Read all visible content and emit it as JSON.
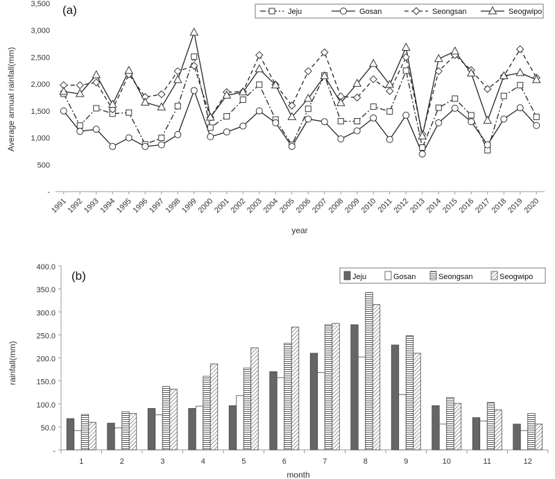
{
  "chart_data": [
    {
      "type": "line",
      "panel_label": "(a)",
      "xlabel": "year",
      "ylabel": "Average annual rainfall(mm)",
      "ylim": [
        0,
        3500
      ],
      "yticks": [
        "-",
        "500",
        "1,000",
        "1,500",
        "2,000",
        "2,500",
        "3,000",
        "3,500"
      ],
      "legend_position": "top-right",
      "categories": [
        "1991",
        "1992",
        "1993",
        "1994",
        "1995",
        "1996",
        "1997",
        "1998",
        "1999",
        "2000",
        "2001",
        "2002",
        "2003",
        "2004",
        "2005",
        "2006",
        "2007",
        "2008",
        "2009",
        "2010",
        "2011",
        "2012",
        "2013",
        "2014",
        "2015",
        "2016",
        "2017",
        "2018",
        "2019",
        "2020"
      ],
      "series": [
        {
          "name": "Jeju",
          "line": "dashdot",
          "marker": "square",
          "values": [
            1820,
            1230,
            1550,
            1450,
            1470,
            880,
            1000,
            1590,
            2510,
            1190,
            1400,
            1710,
            1990,
            1340,
            870,
            1540,
            2160,
            1310,
            1310,
            1580,
            1490,
            2250,
            820,
            1560,
            1730,
            1420,
            770,
            1780,
            1980,
            1390
          ]
        },
        {
          "name": "Gosan",
          "line": "solid",
          "marker": "circle",
          "values": [
            1500,
            1120,
            1160,
            840,
            1000,
            840,
            870,
            1060,
            1880,
            1020,
            1110,
            1220,
            1500,
            1280,
            840,
            1350,
            1300,
            980,
            1130,
            1370,
            970,
            1420,
            700,
            1280,
            1550,
            1300,
            870,
            1350,
            1560,
            1230
          ]
        },
        {
          "name": "Seongsan",
          "line": "dashed",
          "marker": "diamond",
          "values": [
            1980,
            1980,
            2030,
            1530,
            2180,
            1760,
            1810,
            2240,
            2340,
            1380,
            1850,
            1860,
            2540,
            1990,
            1600,
            2240,
            2590,
            1770,
            1750,
            2090,
            1870,
            2500,
            1070,
            2240,
            2540,
            2260,
            1910,
            2150,
            2650,
            2120
          ]
        },
        {
          "name": "Seogwipo",
          "line": "solid",
          "marker": "triangle",
          "values": [
            1860,
            1820,
            2170,
            1620,
            2250,
            1660,
            1570,
            2080,
            2960,
            1380,
            1790,
            1850,
            2280,
            1980,
            1390,
            1730,
            2150,
            1650,
            2010,
            2380,
            1990,
            2680,
            1030,
            2470,
            2610,
            2200,
            1320,
            2150,
            2210,
            2080
          ]
        }
      ]
    },
    {
      "type": "bar",
      "panel_label": "(b)",
      "xlabel": "month",
      "ylabel": "rainfall(mm)",
      "ylim": [
        0,
        400
      ],
      "yticks": [
        "-",
        "50.0",
        "100.0",
        "150.0",
        "200.0",
        "250.0",
        "300.0",
        "350.0",
        "400.0"
      ],
      "legend_position": "top-right",
      "categories": [
        "1",
        "2",
        "3",
        "4",
        "5",
        "6",
        "7",
        "8",
        "9",
        "10",
        "11",
        "12"
      ],
      "series": [
        {
          "name": "Jeju",
          "fill": "solid-gray",
          "values": [
            68,
            58,
            90,
            90,
            96,
            170,
            210,
            272,
            228,
            96,
            70,
            56
          ]
        },
        {
          "name": "Gosan",
          "fill": "white",
          "values": [
            42,
            48,
            76,
            95,
            118,
            157,
            168,
            202,
            120,
            56,
            63,
            42
          ]
        },
        {
          "name": "Seongsan",
          "fill": "horizontal-stripes",
          "values": [
            77,
            83,
            138,
            160,
            178,
            232,
            272,
            342,
            248,
            114,
            103,
            79
          ]
        },
        {
          "name": "Seogwipo",
          "fill": "diagonal-stripes",
          "values": [
            60,
            79,
            132,
            187,
            222,
            267,
            275,
            316,
            210,
            101,
            87,
            56
          ]
        }
      ]
    }
  ]
}
